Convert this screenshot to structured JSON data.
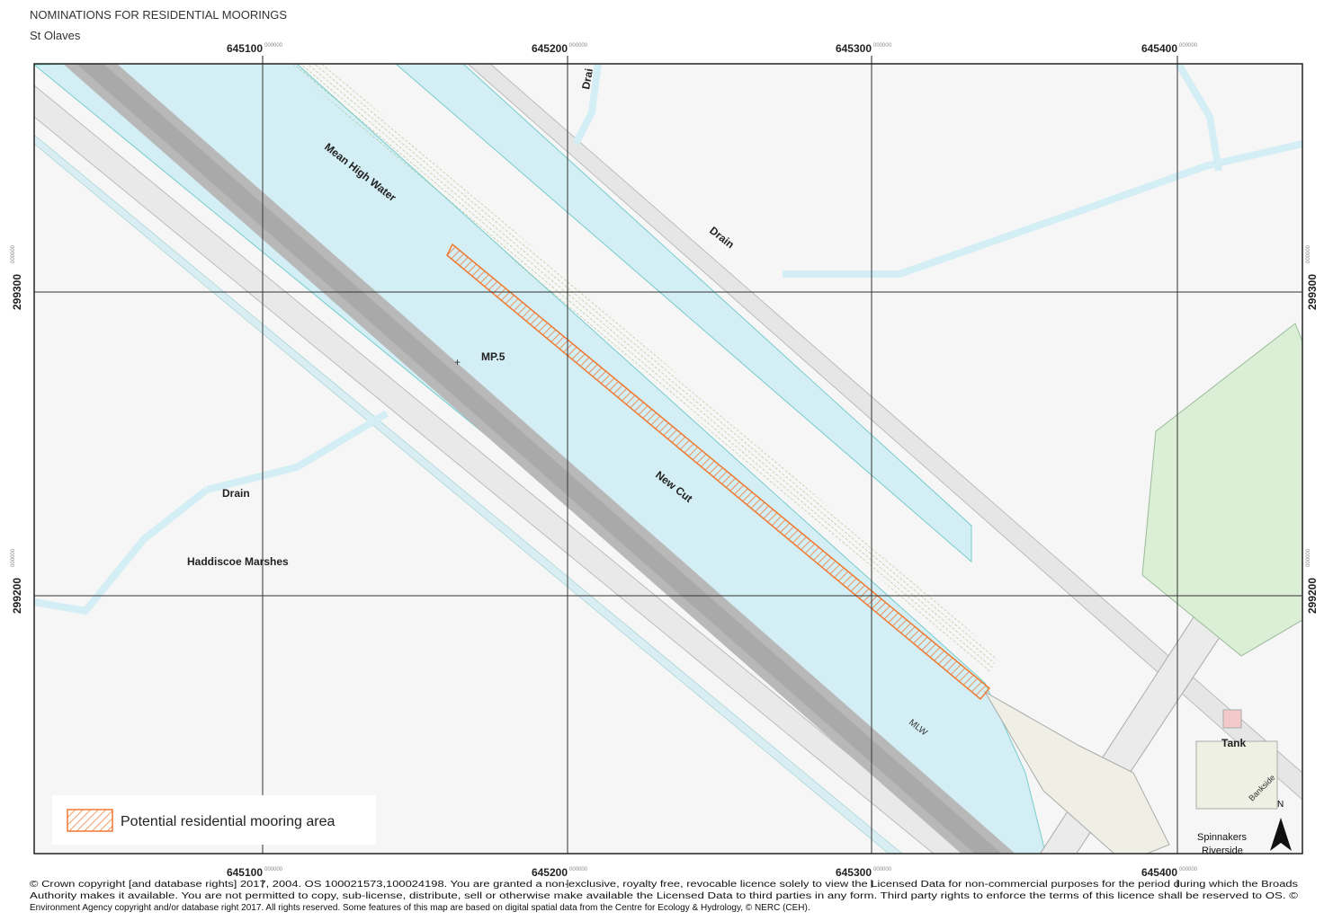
{
  "header": {
    "title": "NOMINATIONS FOR RESIDENTIAL MOORINGS",
    "subtitle": "St Olaves"
  },
  "grid": {
    "eastings": [
      "645100",
      "645200",
      "645300",
      "645400"
    ],
    "northings": [
      "299300",
      "299200"
    ],
    "suffix": "000000"
  },
  "labels": {
    "drain_top": "Drai",
    "mean_high_water": "Mean High Water",
    "drain_right": "Drain",
    "mp": "MP.5",
    "new_cut": "New Cut",
    "drain_left": "Drain",
    "marshes": "Haddiscoe Marshes",
    "mlw": "MLW",
    "tank": "Tank",
    "bankside": "Bankside",
    "spinnakers": [
      "Spinnakers",
      "Riverside"
    ],
    "north": "N"
  },
  "legend": {
    "label": "Potential residential mooring area"
  },
  "copyright": [
    "© Crown copyright [and database rights] 2017, 2004. OS 100021573,100024198. You are granted a non-exclusive, royalty free, revocable licence solely to view the Licensed Data for non-commercial purposes for the period during which the Broads",
    "Authority makes it available. You are not permitted to copy, sub-license, distribute, sell or otherwise make available the Licensed Data to third parties in any form. Third party rights to enforce the terms of this licence shall be reserved to OS. ©",
    "Environment Agency copyright and/or database right 2017. All rights reserved. Some features of this map are based on digital spatial data from the Centre for Ecology & Hydrology, © NERC (CEH)."
  ]
}
